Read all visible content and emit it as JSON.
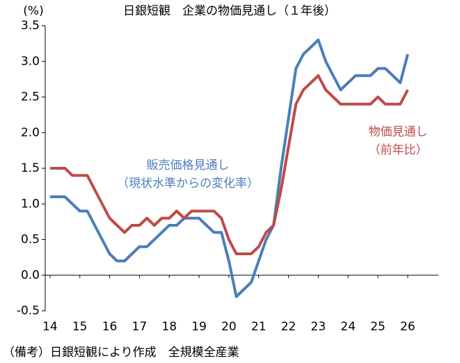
{
  "chart_data": {
    "type": "line",
    "title": "日銀短観　企業の物価見通し（１年後）",
    "y_label": "(%)",
    "note": "（備考）日銀短観により作成　全規模全産業",
    "x": [
      14,
      14.25,
      14.5,
      14.75,
      15,
      15.25,
      15.5,
      15.75,
      16,
      16.25,
      16.5,
      16.75,
      17,
      17.25,
      17.5,
      17.75,
      18,
      18.25,
      18.5,
      18.75,
      19,
      19.25,
      19.5,
      19.75,
      20,
      20.25,
      20.5,
      20.75,
      21,
      21.25,
      21.5,
      21.75,
      22,
      22.25,
      22.5,
      22.75,
      23,
      23.25,
      23.5,
      23.75,
      24,
      24.25,
      24.5,
      24.75,
      25,
      25.25,
      25.5,
      25.75,
      26
    ],
    "series": [
      {
        "name": "販売価格見通し",
        "name_note": "（現状水準からの変化率）",
        "color": "#4a7ebb",
        "values": [
          1.1,
          1.1,
          1.1,
          1.0,
          0.9,
          0.9,
          0.7,
          0.5,
          0.3,
          0.2,
          0.2,
          0.3,
          0.4,
          0.4,
          0.5,
          0.6,
          0.7,
          0.7,
          0.8,
          0.8,
          0.8,
          0.7,
          0.6,
          0.6,
          0.2,
          -0.3,
          -0.2,
          -0.1,
          0.2,
          0.5,
          0.7,
          1.5,
          2.2,
          2.9,
          3.1,
          3.2,
          3.3,
          3.0,
          2.8,
          2.6,
          2.7,
          2.8,
          2.8,
          2.8,
          2.9,
          2.9,
          2.8,
          2.7,
          3.1
        ]
      },
      {
        "name": "物価見通し",
        "name_note": "（前年比）",
        "color": "#be4b48",
        "values": [
          1.5,
          1.5,
          1.5,
          1.4,
          1.4,
          1.4,
          1.2,
          1.0,
          0.8,
          0.7,
          0.6,
          0.7,
          0.7,
          0.8,
          0.7,
          0.8,
          0.8,
          0.9,
          0.8,
          0.9,
          0.9,
          0.9,
          0.9,
          0.8,
          0.5,
          0.3,
          0.3,
          0.3,
          0.4,
          0.6,
          0.7,
          1.2,
          1.8,
          2.4,
          2.6,
          2.7,
          2.8,
          2.6,
          2.5,
          2.4,
          2.4,
          2.4,
          2.4,
          2.4,
          2.5,
          2.4,
          2.4,
          2.4,
          2.6
        ]
      }
    ],
    "xlim": [
      13.84,
      27.03
    ],
    "xticks": [
      14,
      15,
      16,
      17,
      18,
      19,
      20,
      21,
      22,
      23,
      24,
      25,
      26
    ],
    "ylim": [
      -0.5,
      3.5
    ],
    "yticks": [
      {
        "value": -0.5,
        "label": "-0.5"
      },
      {
        "value": 0,
        "label": "0.0"
      },
      0.5,
      {
        "value": 1,
        "label": "1.0"
      },
      1.5,
      {
        "value": 2,
        "label": "2.0"
      },
      2.5,
      {
        "value": 3,
        "label": "3.0"
      },
      3.5
    ]
  }
}
